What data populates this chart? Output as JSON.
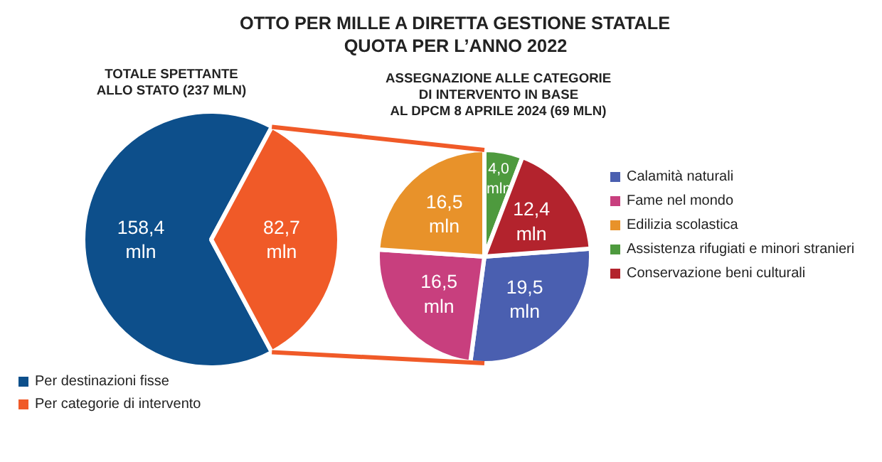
{
  "chart_data": [
    {
      "type": "pie",
      "title": "OTTO PER MILLE A DIRETTA GESTIONE STATALE\nQUOTA PER L’ANNO 2022",
      "subtitle": "TOTALE SPETTANTE\nALLO STATO (237 MLN)",
      "categories": [
        "Per destinazioni fisse",
        "Per categorie di intervento"
      ],
      "values": [
        158.4,
        82.7
      ],
      "colors": [
        "#0d4f8b",
        "#f05a28"
      ],
      "value_labels": [
        "158,4\nmln",
        "82,7\nmln"
      ],
      "legend": "bottom left"
    },
    {
      "type": "pie",
      "subtitle": "ASSEGNAZIONE ALLE CATEGORIE\nDI INTERVENTO IN BASE\nAL DPCM 8 APRILE 2024 (69 MLN)",
      "categories": [
        "Calamità naturali",
        "Fame nel mondo",
        "Edilizia scolastica",
        "Assistenza rifugiati e minori stranieri",
        "Conservazione beni culturali"
      ],
      "values": [
        19.5,
        16.5,
        16.5,
        4.0,
        12.4
      ],
      "colors": [
        "#4a5fb0",
        "#c83f7e",
        "#e8922a",
        "#4e9a3e",
        "#b3232d"
      ],
      "value_labels": [
        "19,5\nmln",
        "16,5\nmln",
        "16,5\nmln",
        "4,0\nmln",
        "12,4\nmln"
      ],
      "legend": "right"
    }
  ]
}
